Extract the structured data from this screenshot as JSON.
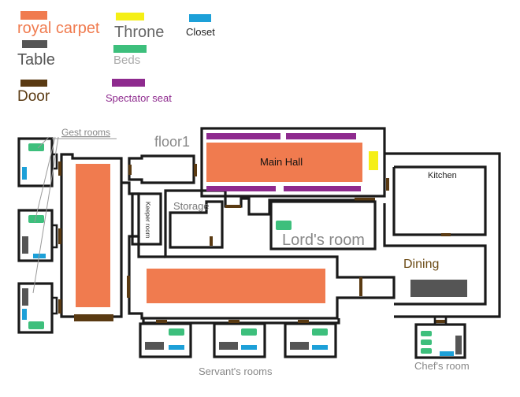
{
  "legend": {
    "royal_carpet": "royal carpet",
    "throne": "Throne",
    "closet": "Closet",
    "table": "Table",
    "beds": "Beds",
    "door": "Door",
    "spectator_seat": "Spectator seat"
  },
  "labels": {
    "gest_rooms": "Gest rooms",
    "floor": "floor1",
    "main_hall": "Main Hall",
    "kitchen": "Kitchen",
    "storage": "Storage",
    "keeper_room": "Keeper room",
    "lords_room": "Lord's room",
    "dining": "Dining",
    "servants_rooms": "Servant's rooms",
    "chefs_room": "Chef's room"
  },
  "colors": {
    "royal_carpet": "#f07b4f",
    "throne": "#f5ef15",
    "closet": "#1da0d8",
    "table": "#555555",
    "beds": "#3dbf7c",
    "door": "#5a3a12",
    "spectator_seat": "#8e2a8e",
    "wall": "#1a1a1a"
  }
}
